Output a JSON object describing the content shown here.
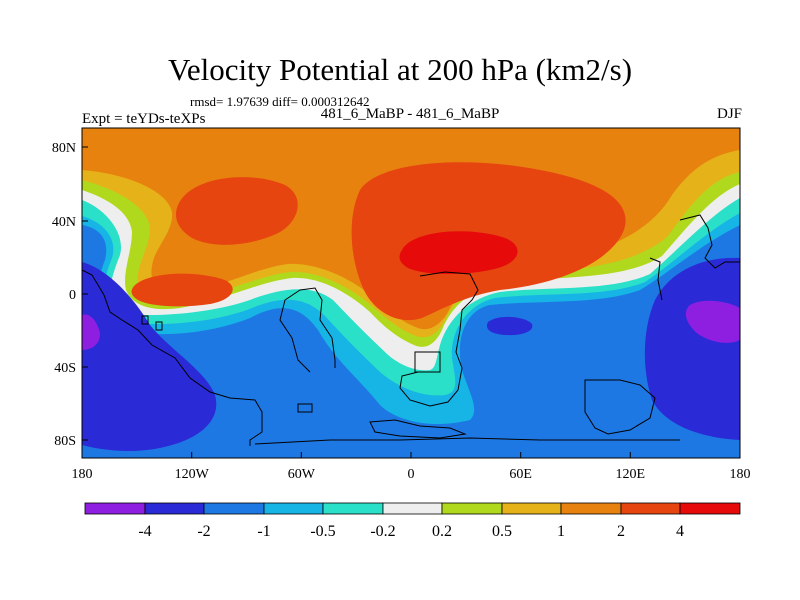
{
  "title": "Velocity Potential at 200 hPa (km2/s)",
  "stats": "rmsd= 1.97639 diff= 0.000312642",
  "left_label": "Expt = teYDs-teXPs",
  "center_label": "481_6_MaBP - 481_6_MaBP",
  "right_label": "DJF",
  "axes": {
    "x_ticks": [
      "180",
      "120W",
      "60W",
      "0",
      "60E",
      "120E",
      "180"
    ],
    "y_ticks": [
      "80N",
      "40N",
      "0",
      "40S",
      "80S"
    ]
  },
  "colorbar": {
    "colors": [
      "#8f1fe0",
      "#2a2ad6",
      "#1e78e4",
      "#17b4e6",
      "#2be0c8",
      "#eeeeee",
      "#b0d81c",
      "#e6b21a",
      "#e8820e",
      "#e64510",
      "#e60a0a"
    ],
    "labels": [
      "-4",
      "-2",
      "-1",
      "-0.5",
      "-0.2",
      "0.2",
      "0.5",
      "1",
      "2",
      "4"
    ]
  }
}
